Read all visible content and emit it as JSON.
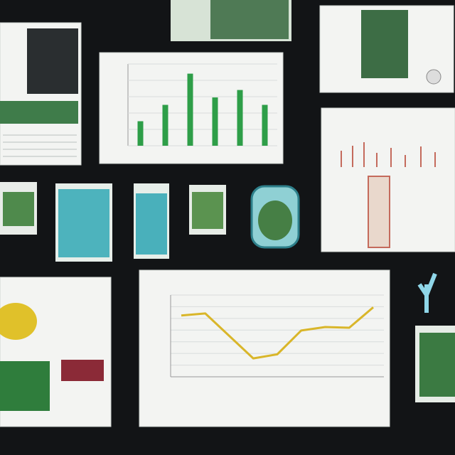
{
  "charts": [
    {
      "type": "bar",
      "color": "#2e9e48",
      "values": [
        33,
        55,
        97,
        65,
        75,
        55
      ],
      "ylim": [
        0,
        110
      ]
    },
    {
      "type": "line",
      "color": "#d9b62a",
      "values": [
        90,
        93,
        60,
        27,
        33,
        68,
        73,
        72,
        102
      ],
      "ylim": [
        0,
        120
      ]
    }
  ]
}
